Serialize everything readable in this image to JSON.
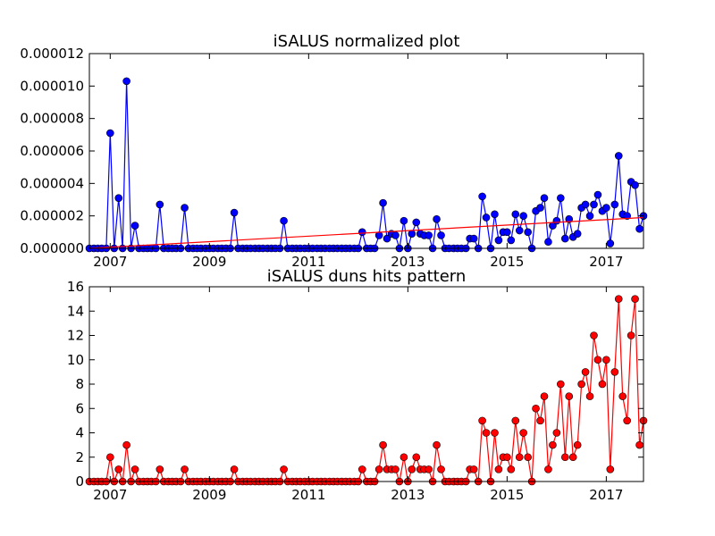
{
  "chart_data": [
    {
      "type": "line",
      "title": "iSALUS normalized plot",
      "xlabel": "",
      "ylabel": "",
      "x_range": [
        2006.58,
        2017.75
      ],
      "ylim": [
        0,
        1.2e-05
      ],
      "x_ticks": [
        2007,
        2009,
        2011,
        2013,
        2015,
        2017
      ],
      "x_tick_labels": [
        "2007",
        "2009",
        "2011",
        "2013",
        "2015",
        "2017"
      ],
      "y_ticks": [
        0,
        2e-06,
        4e-06,
        6e-06,
        8e-06,
        1e-05,
        1.2e-05
      ],
      "y_tick_labels": [
        "0.000000",
        "0.000002",
        "0.000004",
        "0.000006",
        "0.000008",
        "0.000010",
        "0.000012"
      ],
      "grid": false,
      "series": [
        {
          "color": "#0000ff",
          "marker": "circle",
          "x": [
            2006.58,
            2006.67,
            2006.75,
            2006.83,
            2006.92,
            2007.0,
            2007.08,
            2007.17,
            2007.25,
            2007.33,
            2007.42,
            2007.5,
            2007.58,
            2007.67,
            2007.75,
            2007.83,
            2007.92,
            2008.0,
            2008.08,
            2008.17,
            2008.25,
            2008.33,
            2008.42,
            2008.5,
            2008.58,
            2008.67,
            2008.75,
            2008.83,
            2008.92,
            2009.0,
            2009.08,
            2009.17,
            2009.25,
            2009.33,
            2009.42,
            2009.5,
            2009.58,
            2009.67,
            2009.75,
            2009.83,
            2009.92,
            2010.0,
            2010.08,
            2010.17,
            2010.25,
            2010.33,
            2010.42,
            2010.5,
            2010.58,
            2010.67,
            2010.75,
            2010.83,
            2010.92,
            2011.0,
            2011.08,
            2011.17,
            2011.25,
            2011.33,
            2011.42,
            2011.5,
            2011.58,
            2011.67,
            2011.75,
            2011.83,
            2011.92,
            2012.0,
            2012.08,
            2012.17,
            2012.25,
            2012.33,
            2012.42,
            2012.5,
            2012.58,
            2012.67,
            2012.75,
            2012.83,
            2012.92,
            2013.0,
            2013.08,
            2013.17,
            2013.25,
            2013.33,
            2013.42,
            2013.5,
            2013.58,
            2013.67,
            2013.75,
            2013.83,
            2013.92,
            2014.0,
            2014.08,
            2014.17,
            2014.25,
            2014.33,
            2014.42,
            2014.5,
            2014.58,
            2014.67,
            2014.75,
            2014.83,
            2014.92,
            2015.0,
            2015.08,
            2015.17,
            2015.25,
            2015.33,
            2015.42,
            2015.5,
            2015.58,
            2015.67,
            2015.75,
            2015.83,
            2015.92,
            2016.0,
            2016.08,
            2016.17,
            2016.25,
            2016.33,
            2016.42,
            2016.5,
            2016.58,
            2016.67,
            2016.75,
            2016.83,
            2016.92,
            2017.0,
            2017.08,
            2017.17,
            2017.25,
            2017.33,
            2017.42,
            2017.5,
            2017.58,
            2017.67,
            2017.75
          ],
          "y": [
            0,
            0,
            0,
            0,
            0,
            7.1e-06,
            0,
            3.1e-06,
            0,
            1.03e-05,
            0,
            1.4e-06,
            0,
            0,
            0,
            0,
            0,
            2.7e-06,
            0,
            0,
            0,
            0,
            0,
            2.5e-06,
            0,
            0,
            0,
            0,
            0,
            0,
            0,
            0,
            0,
            0,
            0,
            2.2e-06,
            0,
            0,
            0,
            0,
            0,
            0,
            0,
            0,
            0,
            0,
            0,
            1.7e-06,
            0,
            0,
            0,
            0,
            0,
            0,
            0,
            0,
            0,
            0,
            0,
            0,
            0,
            0,
            0,
            0,
            0,
            0,
            1e-06,
            0,
            0,
            0,
            8e-07,
            2.8e-06,
            6e-07,
            9e-07,
            8e-07,
            0,
            1.7e-06,
            0,
            9e-07,
            1.6e-06,
            9e-07,
            8e-07,
            8e-07,
            0,
            1.8e-06,
            8e-07,
            0,
            0,
            0,
            0,
            0,
            0,
            6e-07,
            6e-07,
            0,
            3.2e-06,
            1.9e-06,
            0,
            2.1e-06,
            5e-07,
            1e-06,
            1e-06,
            5e-07,
            2.1e-06,
            1.1e-06,
            2e-06,
            1e-06,
            0,
            2.3e-06,
            2.5e-06,
            3.1e-06,
            4e-07,
            1.4e-06,
            1.7e-06,
            3.1e-06,
            6e-07,
            1.8e-06,
            7e-07,
            9e-07,
            2.5e-06,
            2.7e-06,
            2e-06,
            2.7e-06,
            3.3e-06,
            2.3e-06,
            2.5e-06,
            3e-07,
            2.7e-06,
            5.7e-06,
            2.1e-06,
            2e-06,
            4.1e-06,
            3.9e-06,
            1.2e-06,
            2e-06
          ]
        },
        {
          "color": "#ff0000",
          "marker": "none",
          "x": [
            2006.58,
            2017.75
          ],
          "y": [
            0,
            1.9e-06
          ]
        }
      ]
    },
    {
      "type": "line",
      "title": "iSALUS duns hits pattern",
      "xlabel": "",
      "ylabel": "",
      "x_range": [
        2006.58,
        2017.75
      ],
      "ylim": [
        0,
        16
      ],
      "x_ticks": [
        2007,
        2009,
        2011,
        2013,
        2015,
        2017
      ],
      "x_tick_labels": [
        "2007",
        "2009",
        "2011",
        "2013",
        "2015",
        "2017"
      ],
      "y_ticks": [
        0,
        2,
        4,
        6,
        8,
        10,
        12,
        14,
        16
      ],
      "y_tick_labels": [
        "0",
        "2",
        "4",
        "6",
        "8",
        "10",
        "12",
        "14",
        "16"
      ],
      "grid": false,
      "series": [
        {
          "color": "#ff0000",
          "marker": "circle",
          "x": [
            2006.58,
            2006.67,
            2006.75,
            2006.83,
            2006.92,
            2007.0,
            2007.08,
            2007.17,
            2007.25,
            2007.33,
            2007.42,
            2007.5,
            2007.58,
            2007.67,
            2007.75,
            2007.83,
            2007.92,
            2008.0,
            2008.08,
            2008.17,
            2008.25,
            2008.33,
            2008.42,
            2008.5,
            2008.58,
            2008.67,
            2008.75,
            2008.83,
            2008.92,
            2009.0,
            2009.08,
            2009.17,
            2009.25,
            2009.33,
            2009.42,
            2009.5,
            2009.58,
            2009.67,
            2009.75,
            2009.83,
            2009.92,
            2010.0,
            2010.08,
            2010.17,
            2010.25,
            2010.33,
            2010.42,
            2010.5,
            2010.58,
            2010.67,
            2010.75,
            2010.83,
            2010.92,
            2011.0,
            2011.08,
            2011.17,
            2011.25,
            2011.33,
            2011.42,
            2011.5,
            2011.58,
            2011.67,
            2011.75,
            2011.83,
            2011.92,
            2012.0,
            2012.08,
            2012.17,
            2012.25,
            2012.33,
            2012.42,
            2012.5,
            2012.58,
            2012.67,
            2012.75,
            2012.83,
            2012.92,
            2013.0,
            2013.08,
            2013.17,
            2013.25,
            2013.33,
            2013.42,
            2013.5,
            2013.58,
            2013.67,
            2013.75,
            2013.83,
            2013.92,
            2014.0,
            2014.08,
            2014.17,
            2014.25,
            2014.33,
            2014.42,
            2014.5,
            2014.58,
            2014.67,
            2014.75,
            2014.83,
            2014.92,
            2015.0,
            2015.08,
            2015.17,
            2015.25,
            2015.33,
            2015.42,
            2015.5,
            2015.58,
            2015.67,
            2015.75,
            2015.83,
            2015.92,
            2016.0,
            2016.08,
            2016.17,
            2016.25,
            2016.33,
            2016.42,
            2016.5,
            2016.58,
            2016.67,
            2016.75,
            2016.83,
            2016.92,
            2017.0,
            2017.08,
            2017.17,
            2017.25,
            2017.33,
            2017.42,
            2017.5,
            2017.58,
            2017.67,
            2017.75
          ],
          "y": [
            0,
            0,
            0,
            0,
            0,
            2,
            0,
            1,
            0,
            3,
            0,
            1,
            0,
            0,
            0,
            0,
            0,
            1,
            0,
            0,
            0,
            0,
            0,
            1,
            0,
            0,
            0,
            0,
            0,
            0,
            0,
            0,
            0,
            0,
            0,
            1,
            0,
            0,
            0,
            0,
            0,
            0,
            0,
            0,
            0,
            0,
            0,
            1,
            0,
            0,
            0,
            0,
            0,
            0,
            0,
            0,
            0,
            0,
            0,
            0,
            0,
            0,
            0,
            0,
            0,
            0,
            1,
            0,
            0,
            0,
            1,
            3,
            1,
            1,
            1,
            0,
            2,
            0,
            1,
            2,
            1,
            1,
            1,
            0,
            3,
            1,
            0,
            0,
            0,
            0,
            0,
            0,
            1,
            1,
            0,
            5,
            4,
            0,
            4,
            1,
            2,
            2,
            1,
            5,
            2,
            4,
            2,
            0,
            6,
            5,
            7,
            1,
            3,
            4,
            8,
            2,
            7,
            2,
            3,
            8,
            9,
            7,
            12,
            10,
            8,
            10,
            1,
            9,
            15,
            7,
            5,
            12,
            15,
            3,
            5
          ]
        }
      ]
    }
  ]
}
